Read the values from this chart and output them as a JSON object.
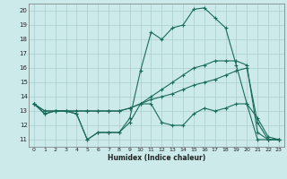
{
  "xlabel": "Humidex (Indice chaleur)",
  "bg_color": "#cceaea",
  "grid_color": "#aacccc",
  "line_color": "#1a6b5a",
  "xlim": [
    -0.5,
    23.5
  ],
  "ylim": [
    10.5,
    20.5
  ],
  "xticks": [
    0,
    1,
    2,
    3,
    4,
    5,
    6,
    7,
    8,
    9,
    10,
    11,
    12,
    13,
    14,
    15,
    16,
    17,
    18,
    19,
    20,
    21,
    22,
    23
  ],
  "yticks": [
    11,
    12,
    13,
    14,
    15,
    16,
    17,
    18,
    19,
    20
  ],
  "series": [
    [
      13.5,
      12.8,
      13.0,
      13.0,
      12.8,
      11.0,
      11.5,
      11.5,
      11.5,
      12.5,
      15.8,
      18.5,
      18.0,
      18.8,
      19.0,
      20.1,
      20.2,
      19.5,
      18.8,
      16.2,
      13.5,
      11.0,
      11.0,
      11.0
    ],
    [
      13.5,
      12.8,
      13.0,
      13.0,
      12.8,
      11.0,
      11.5,
      11.5,
      11.5,
      12.2,
      13.5,
      13.5,
      12.2,
      12.0,
      12.0,
      12.8,
      13.2,
      13.0,
      13.2,
      13.5,
      13.5,
      12.5,
      11.2,
      11.0
    ],
    [
      13.5,
      13.0,
      13.0,
      13.0,
      13.0,
      13.0,
      13.0,
      13.0,
      13.0,
      13.2,
      13.5,
      14.0,
      14.5,
      15.0,
      15.5,
      16.0,
      16.2,
      16.5,
      16.5,
      16.5,
      16.2,
      11.5,
      11.0,
      11.0
    ],
    [
      13.5,
      13.0,
      13.0,
      13.0,
      13.0,
      13.0,
      13.0,
      13.0,
      13.0,
      13.2,
      13.5,
      13.8,
      14.0,
      14.2,
      14.5,
      14.8,
      15.0,
      15.2,
      15.5,
      15.8,
      16.0,
      12.2,
      11.0,
      11.0
    ]
  ]
}
